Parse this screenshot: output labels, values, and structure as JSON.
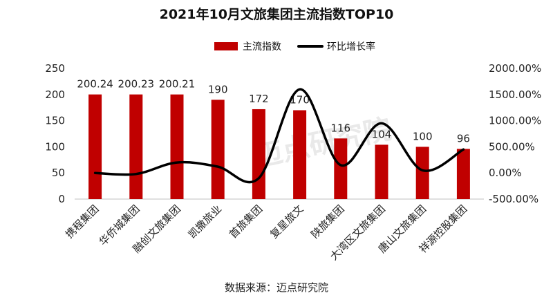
{
  "chart_data": {
    "type": "bar",
    "title": "2021年10月文旅集团主流指数TOP10",
    "categories": [
      "携程集团",
      "华侨城集团",
      "融创文旅集团",
      "凯撒旅业",
      "首旅集团",
      "复星旅文",
      "陕旅集团",
      "大湾区文旅集团",
      "唐山文旅集团",
      "祥源控股集团"
    ],
    "series": [
      {
        "name": "主流指数",
        "type": "bar",
        "color": "#C00000",
        "axis": "left",
        "values": [
          200.24,
          200.23,
          200.21,
          190,
          172,
          170,
          116,
          104,
          100,
          96
        ],
        "labels": [
          "200.24",
          "200.23",
          "200.21",
          "190",
          "172",
          "170",
          "116",
          "104",
          "100",
          "96"
        ]
      },
      {
        "name": "环比增长率",
        "type": "line",
        "color": "#000000",
        "axis": "right",
        "smooth": true,
        "values": [
          0,
          -20,
          200,
          120,
          -100,
          1600,
          150,
          950,
          50,
          450
        ]
      }
    ],
    "y_left": {
      "min": 0,
      "max": 250,
      "ticks": [
        "0",
        "50",
        "100",
        "150",
        "200",
        "250"
      ]
    },
    "y_right": {
      "min": -500,
      "max": 2000,
      "ticks": [
        "-500.00%",
        "0.00%",
        "500.00%",
        "1000.00%",
        "1500.00%",
        "2000.00%"
      ]
    },
    "legend_position": "top-center",
    "grid": false
  },
  "source": "数据来源：迈点研究院",
  "watermark": "迈点研究院"
}
